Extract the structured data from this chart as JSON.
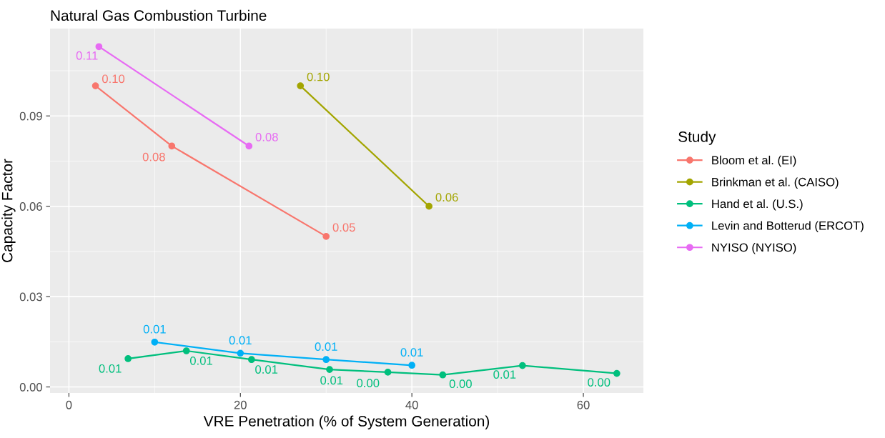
{
  "chart_data": {
    "type": "line",
    "title": "Natural Gas Combustion Turbine",
    "xlabel": "VRE Penetration (% of System Generation)",
    "ylabel": "Capacity Factor",
    "legend_title": "Study",
    "legend": "right",
    "grid": true,
    "marker": "circle",
    "xlim": [
      -2.2,
      67
    ],
    "xticks": [
      0,
      20,
      40,
      60
    ],
    "ylim": [
      -0.002,
      0.119
    ],
    "yticks": [
      {
        "value": 0,
        "label": "0.00"
      },
      {
        "value": 0.03,
        "label": "0.03"
      },
      {
        "value": 0.06,
        "label": "0.06"
      },
      {
        "value": 0.09,
        "label": "0.09"
      }
    ],
    "series": [
      {
        "name": "Bloom et al. (EI)",
        "color": "#f8766d",
        "x": [
          3.1,
          12,
          30
        ],
        "values": [
          0.1,
          0.08,
          0.05
        ],
        "value_labels": [
          "0.10",
          "0.08",
          "0.05"
        ]
      },
      {
        "name": "Brinkman et al. (CAISO)",
        "color": "#a3a500",
        "x": [
          27,
          42
        ],
        "values": [
          0.1,
          0.06
        ],
        "value_labels": [
          "0.10",
          "0.06"
        ]
      },
      {
        "name": "Hand et al. (U.S.)",
        "color": "#00bf7d",
        "x": [
          6.9,
          13.7,
          21.3,
          30.4,
          37.2,
          43.6,
          52.9,
          63.9
        ],
        "values": [
          0.0094,
          0.012,
          0.0091,
          0.0058,
          0.0049,
          0.004,
          0.0071,
          0.0045
        ],
        "value_labels": [
          "0.01",
          "0.01",
          "0.01",
          "0.01",
          "0.00",
          "0.00",
          "0.01",
          "0.00"
        ]
      },
      {
        "name": "Levin and Botterud (ERCOT)",
        "color": "#00b0f6",
        "x": [
          10,
          20,
          30,
          40
        ],
        "values": [
          0.0149,
          0.0112,
          0.0091,
          0.0072
        ],
        "value_labels": [
          "0.01",
          "0.01",
          "0.01",
          "0.01"
        ]
      },
      {
        "name": "NYISO (NYISO)",
        "color": "#e76bf3",
        "x": [
          3.5,
          21
        ],
        "values": [
          0.113,
          0.08
        ],
        "value_labels": [
          "0.11",
          "0.08"
        ]
      }
    ]
  }
}
